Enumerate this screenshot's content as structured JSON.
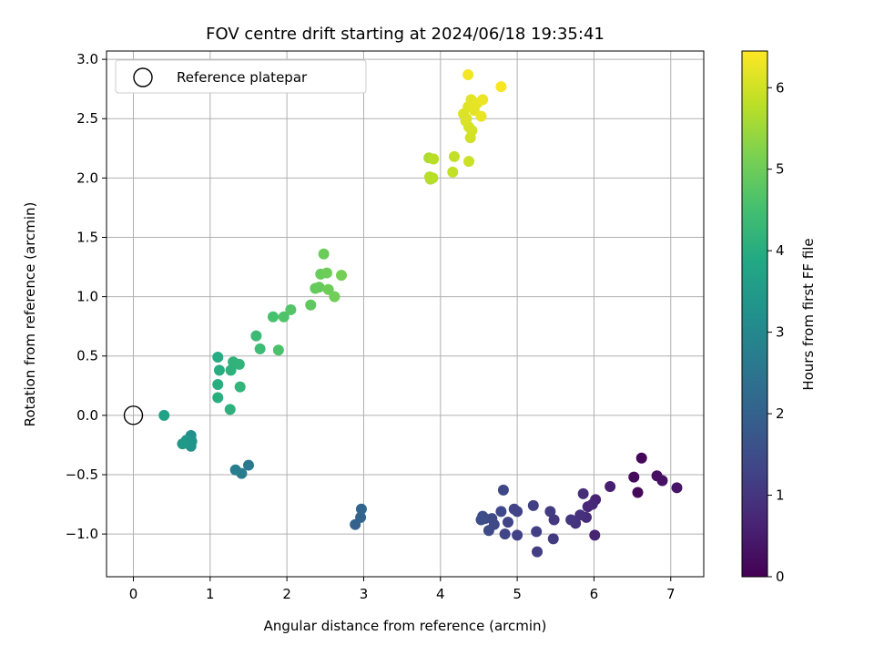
{
  "chart_data": {
    "type": "scatter",
    "title": "FOV centre drift starting at 2024/06/18 19:35:41",
    "xlabel": "Angular distance from reference (arcmin)",
    "ylabel": "Rotation from reference (arcmin)",
    "xlim": [
      -0.35,
      7.43
    ],
    "ylim": [
      -1.36,
      3.07
    ],
    "xticks": [
      0,
      1,
      2,
      3,
      4,
      5,
      6,
      7
    ],
    "yticks": [
      -1.0,
      -0.5,
      0.0,
      0.5,
      1.0,
      1.5,
      2.0,
      2.5,
      3.0
    ],
    "grid": true,
    "legend": {
      "placement": "top-left",
      "entries": [
        "Reference platepar"
      ]
    },
    "colorbar": {
      "label": "Hours from first FF file",
      "range": [
        0,
        6.45
      ],
      "ticks": [
        0,
        1,
        2,
        3,
        4,
        5,
        6
      ],
      "colormap": "viridis"
    },
    "reference_point": {
      "x": 0,
      "y": 0,
      "label": "Reference platepar"
    },
    "series": [
      {
        "x": [
          6.62,
          6.57,
          6.52,
          6.82,
          6.89,
          7.08,
          6.21,
          6.02,
          6.01,
          5.98,
          5.92,
          5.9,
          5.86,
          5.82,
          5.76,
          5.7,
          5.48,
          5.47,
          5.43,
          5.26,
          5.25,
          5.21,
          5.0,
          5.0,
          4.96,
          4.88,
          4.84,
          4.82,
          4.79,
          4.7,
          4.67,
          4.63,
          4.58,
          4.55,
          4.53
        ],
        "y": [
          -0.36,
          -0.65,
          -0.52,
          -0.51,
          -0.55,
          -0.61,
          -0.6,
          -0.71,
          -1.01,
          -0.75,
          -0.77,
          -0.86,
          -0.66,
          -0.84,
          -0.91,
          -0.88,
          -0.88,
          -1.04,
          -0.81,
          -1.15,
          -0.98,
          -0.76,
          -1.01,
          -0.81,
          -0.79,
          -0.9,
          -1.0,
          -0.63,
          -0.81,
          -0.92,
          -0.87,
          -0.97,
          -0.87,
          -0.85,
          -0.88
        ],
        "hours": [
          0.1,
          0.15,
          0.2,
          0.25,
          0.3,
          0.35,
          0.55,
          0.6,
          0.65,
          0.7,
          0.75,
          0.8,
          0.85,
          0.9,
          0.95,
          1.0,
          1.05,
          1.1,
          1.12,
          1.15,
          1.18,
          1.2,
          1.22,
          1.25,
          1.28,
          1.3,
          1.32,
          1.35,
          1.38,
          1.4,
          1.42,
          1.45,
          1.48,
          1.5,
          1.52
        ]
      },
      {
        "x": [
          2.89,
          2.96,
          2.97,
          1.5,
          1.41,
          1.33,
          0.75,
          0.76,
          0.75,
          0.72,
          0.69,
          0.64,
          0.4
        ],
        "y": [
          -0.92,
          -0.86,
          -0.79,
          -0.42,
          -0.49,
          -0.46,
          -0.17,
          -0.22,
          -0.26,
          -0.24,
          -0.21,
          -0.24,
          0.0
        ],
        "hours": [
          2.0,
          2.05,
          2.1,
          2.6,
          2.65,
          2.7,
          3.2,
          3.25,
          3.3,
          3.35,
          3.4,
          3.45,
          3.7
        ]
      },
      {
        "x": [
          1.1,
          1.12,
          1.1,
          1.1,
          1.26,
          1.27,
          1.3,
          1.38,
          1.39,
          1.6,
          1.65,
          1.82,
          1.89,
          1.96,
          2.05,
          2.31,
          2.37,
          2.42,
          2.44,
          2.48,
          2.52,
          2.54,
          2.62,
          2.71
        ],
        "y": [
          0.49,
          0.38,
          0.26,
          0.15,
          0.05,
          0.38,
          0.45,
          0.43,
          0.24,
          0.67,
          0.56,
          0.83,
          0.55,
          0.83,
          0.89,
          0.93,
          1.07,
          1.08,
          1.19,
          1.36,
          1.2,
          1.06,
          1.0,
          1.18
        ],
        "hours": [
          3.95,
          4.0,
          4.02,
          4.05,
          4.1,
          4.12,
          4.15,
          4.18,
          4.2,
          4.35,
          4.4,
          4.55,
          4.6,
          4.65,
          4.7,
          4.85,
          4.9,
          4.92,
          4.95,
          4.98,
          5.0,
          5.02,
          5.05,
          5.1
        ]
      },
      {
        "x": [
          3.85,
          3.87,
          3.9,
          3.86,
          3.91,
          4.16,
          4.18,
          4.37,
          4.39,
          4.41,
          4.37,
          4.33,
          4.3,
          4.34,
          4.36,
          4.4,
          4.44,
          4.48,
          4.53,
          4.55,
          4.36,
          4.79
        ],
        "y": [
          2.17,
          1.99,
          2.0,
          2.01,
          2.16,
          2.05,
          2.18,
          2.14,
          2.34,
          2.4,
          2.43,
          2.48,
          2.54,
          2.5,
          2.6,
          2.66,
          2.57,
          2.63,
          2.52,
          2.66,
          2.87,
          2.77
        ],
        "hours": [
          5.65,
          5.7,
          5.72,
          5.75,
          5.78,
          5.85,
          5.88,
          5.95,
          6.0,
          6.02,
          6.05,
          6.08,
          6.1,
          6.12,
          6.15,
          6.18,
          6.2,
          6.22,
          6.25,
          6.28,
          6.35,
          6.4
        ]
      }
    ]
  }
}
